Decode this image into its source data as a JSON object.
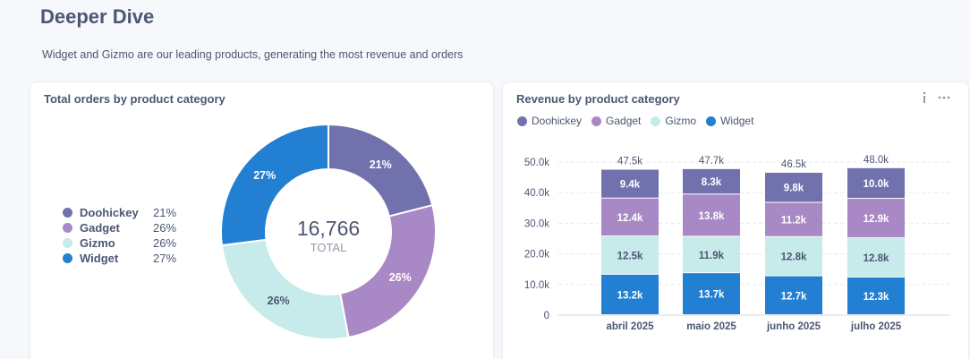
{
  "page": {
    "title": "Deeper Dive",
    "subtitle": "Widget and Gizmo are our leading products, generating the most revenue and orders"
  },
  "colors": {
    "Doohickey": "#7172ad",
    "Gadget": "#a989c5",
    "Gizmo": "#c7eaea",
    "Widget": "#227fd2"
  },
  "orders_card": {
    "title": "Total orders by product category",
    "total_value": "16,766",
    "total_label": "TOTAL",
    "legend": [
      {
        "name": "Doohickey",
        "pct": "21%"
      },
      {
        "name": "Gadget",
        "pct": "26%"
      },
      {
        "name": "Gizmo",
        "pct": "26%"
      },
      {
        "name": "Widget",
        "pct": "27%"
      }
    ]
  },
  "revenue_card": {
    "title": "Revenue by product category",
    "info_icon": "info-icon",
    "more_icon": "more-icon",
    "legend": [
      "Doohickey",
      "Gadget",
      "Gizmo",
      "Widget"
    ]
  },
  "chart_data": [
    {
      "type": "pie",
      "title": "Total orders by product category",
      "labels": [
        "Doohickey",
        "Gadget",
        "Gizmo",
        "Widget"
      ],
      "values": [
        21,
        26,
        26,
        27
      ],
      "value_labels": [
        "21%",
        "26%",
        "26%",
        "27%"
      ],
      "center_value": "16,766",
      "center_label": "TOTAL",
      "legend_position": "left"
    },
    {
      "type": "bar",
      "stacked": true,
      "title": "Revenue by product category",
      "categories": [
        "abril 2025",
        "maio 2025",
        "junho 2025",
        "julho 2025"
      ],
      "series": [
        {
          "name": "Widget",
          "values": [
            13200,
            13700,
            12700,
            12300
          ],
          "labels": [
            "13.2k",
            "13.7k",
            "12.7k",
            "12.3k"
          ]
        },
        {
          "name": "Gizmo",
          "values": [
            12500,
            11900,
            12800,
            12800
          ],
          "labels": [
            "12.5k",
            "11.9k",
            "12.8k",
            "12.8k"
          ]
        },
        {
          "name": "Gadget",
          "values": [
            12400,
            13800,
            11200,
            12900
          ],
          "labels": [
            "12.4k",
            "13.8k",
            "11.2k",
            "12.9k"
          ]
        },
        {
          "name": "Doohickey",
          "values": [
            9400,
            8300,
            9800,
            10000
          ],
          "labels": [
            "9.4k",
            "8.3k",
            "9.8k",
            "10.0k"
          ]
        }
      ],
      "totals": [
        "47.5k",
        "47.7k",
        "46.5k",
        "48.0k"
      ],
      "yticks": [
        "0",
        "10.0k",
        "20.0k",
        "30.0k",
        "40.0k",
        "50.0k"
      ],
      "ylim": [
        0,
        50000
      ],
      "grid": true,
      "legend_position": "top-left"
    }
  ]
}
